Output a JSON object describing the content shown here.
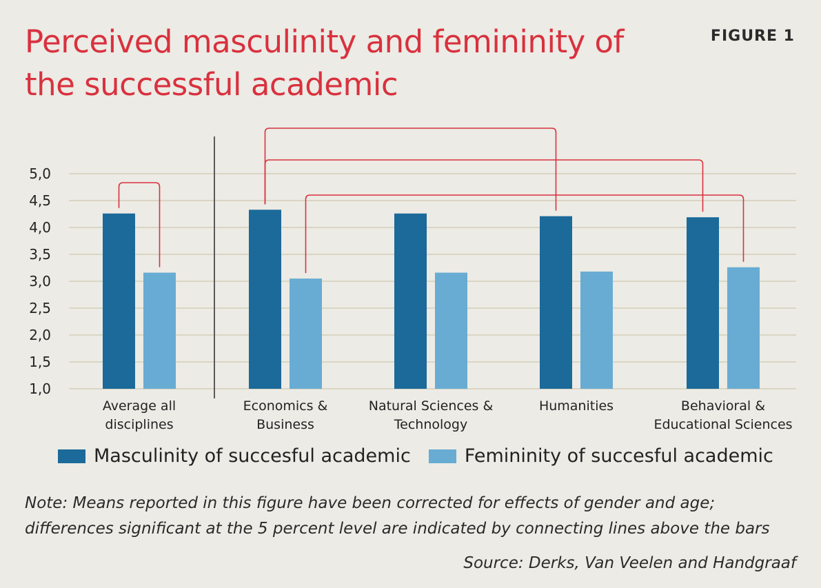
{
  "header": {
    "title": "Perceived masculinity and femininity of the successful academic",
    "figure_label": "FIGURE 1"
  },
  "footer": {
    "note": "Note: Means reported in this figure have been corrected for effects of gender and age; differences significant at the 5 percent level are indicated by connecting lines above the bars",
    "source": "Source: Derks, Van Veelen and Handgraaf"
  },
  "colors": {
    "masculinity": "#1b6a9a",
    "femininity": "#68acd3",
    "significance_line": "#d9313e",
    "grid": "#cfc8b0",
    "separator": "#5a5a5a"
  },
  "chart_data": {
    "type": "bar",
    "title": "Perceived masculinity and femininity of the successful academic",
    "xlabel": "",
    "ylabel": "",
    "ylim": [
      1.0,
      5.0
    ],
    "yticks": [
      "1,0",
      "1,5",
      "2,0",
      "2,5",
      "3,0",
      "3,5",
      "4,0",
      "4,5",
      "5,0"
    ],
    "grid": true,
    "legend_position": "bottom",
    "categories": [
      [
        "Average all",
        "disciplines"
      ],
      [
        "Economics &",
        "Business"
      ],
      [
        "Natural Sciences &",
        "Technology"
      ],
      [
        "Humanities"
      ],
      [
        "Behavioral &",
        "Educational Sciences"
      ]
    ],
    "series": [
      {
        "name": "Masculinity of succesful academic",
        "values": [
          4.26,
          4.33,
          4.26,
          4.21,
          4.19
        ]
      },
      {
        "name": "Femininity of succesful academic",
        "values": [
          3.16,
          3.05,
          3.16,
          3.18,
          3.26
        ]
      }
    ],
    "significance_brackets": [
      {
        "from": {
          "category": 0,
          "series": 0
        },
        "to": {
          "category": 0,
          "series": 1
        }
      },
      {
        "from": {
          "category": 1,
          "series": 0
        },
        "to": {
          "category": 3,
          "series": 0
        }
      },
      {
        "from": {
          "category": 1,
          "series": 0
        },
        "to": {
          "category": 4,
          "series": 0
        }
      },
      {
        "from": {
          "category": 1,
          "series": 1
        },
        "to": {
          "category": 4,
          "series": 1
        }
      }
    ]
  }
}
